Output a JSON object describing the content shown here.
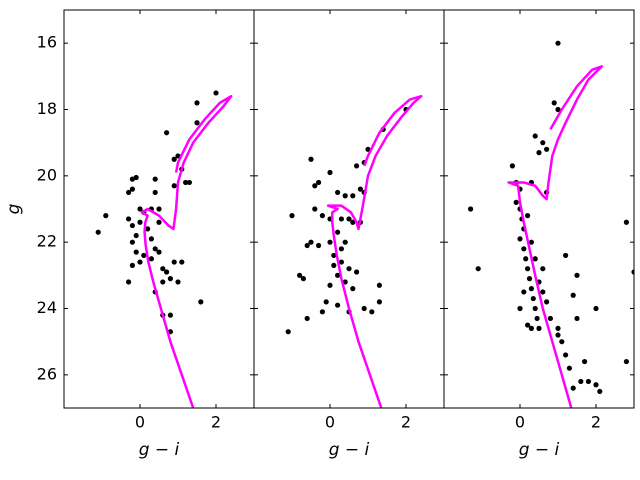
{
  "chart_data": [
    {
      "type": "scatter",
      "xlabel": "g − i",
      "ylabel": "g",
      "ytick_labels": true,
      "xlim": [
        -2,
        3
      ],
      "ylim": [
        27,
        15
      ],
      "xticks": [
        0,
        2
      ],
      "yticks": [
        16,
        18,
        20,
        22,
        24,
        26
      ],
      "series": [
        {
          "type": "scatter",
          "color": "#000000",
          "x": [
            -1.1,
            -0.9,
            -0.3,
            -0.2,
            -0.1,
            -0.2,
            0.4,
            0.4,
            -0.3,
            -0.2,
            -0.1,
            0.0,
            0.1,
            0.3,
            0.5,
            -0.2,
            -0.1,
            0.0,
            -0.2,
            0.1,
            0.3,
            0.5,
            0.6,
            0.7,
            0.9,
            1.1,
            0.8,
            0.6,
            0.4,
            1.0,
            -0.3,
            0.6,
            0.8,
            1.6,
            0.8,
            0.7,
            0.9,
            1.0,
            1.1,
            0.9,
            1.2,
            1.3,
            1.5,
            2.0,
            1.5,
            0.2,
            0.3,
            0.4,
            0.0,
            0.5
          ],
          "y": [
            21.7,
            21.2,
            20.5,
            20.1,
            20.05,
            20.4,
            20.1,
            20.5,
            21.3,
            21.5,
            21.8,
            21.0,
            21.1,
            21.0,
            21.0,
            22.0,
            22.3,
            22.6,
            22.7,
            22.4,
            22.5,
            22.3,
            22.8,
            22.9,
            22.6,
            22.6,
            23.1,
            23.2,
            23.5,
            23.2,
            23.2,
            24.2,
            24.2,
            23.8,
            24.7,
            18.7,
            19.5,
            19.4,
            19.8,
            20.3,
            20.2,
            20.2,
            17.8,
            17.5,
            18.4,
            21.6,
            21.9,
            22.2,
            21.4,
            21.4
          ]
        },
        {
          "type": "line",
          "color": "#ff00ff",
          "x": [
            1.4,
            1.1,
            0.8,
            0.55,
            0.35,
            0.22,
            0.15,
            0.12,
            0.14,
            0.2,
            0.05,
            0.2,
            0.5,
            0.75,
            0.88,
            0.95,
            1.0,
            1.15,
            1.4,
            1.8,
            2.2,
            2.4,
            2.1,
            1.7,
            1.3,
            1.0,
            0.95
          ],
          "y": [
            27,
            26,
            25,
            24,
            23.2,
            22.6,
            22.1,
            21.7,
            21.4,
            21.2,
            21.1,
            21.0,
            21.2,
            21.5,
            21.6,
            21.0,
            20.2,
            19.6,
            19.0,
            18.4,
            17.9,
            17.6,
            17.8,
            18.3,
            18.9,
            19.6,
            19.9
          ]
        }
      ]
    },
    {
      "type": "scatter",
      "xlabel": "g − i",
      "ytick_labels": false,
      "xlim": [
        -2,
        3
      ],
      "ylim": [
        27,
        15
      ],
      "xticks": [
        0,
        2
      ],
      "yticks": [
        16,
        18,
        20,
        22,
        24,
        26
      ],
      "series": [
        {
          "type": "scatter",
          "color": "#000000",
          "x": [
            -1.1,
            -0.7,
            -0.8,
            -0.6,
            -1.0,
            -0.5,
            -0.3,
            -0.4,
            0.0,
            0.2,
            0.4,
            0.6,
            -0.4,
            -0.2,
            0.0,
            0.3,
            0.5,
            -0.5,
            -0.3,
            0.0,
            0.2,
            0.4,
            0.1,
            0.3,
            0.5,
            0.2,
            0.4,
            0.6,
            0.0,
            -0.1,
            0.2,
            0.5,
            1.1,
            1.3,
            1.3,
            0.9,
            -0.2,
            0.7,
            0.9,
            1.0,
            1.4,
            0.8,
            0.9,
            2.0,
            0.6,
            0.8,
            -0.6,
            0.3,
            0.1,
            0.7
          ],
          "y": [
            24.7,
            23.1,
            23.0,
            24.3,
            21.2,
            19.5,
            20.2,
            20.3,
            19.9,
            20.5,
            20.6,
            20.6,
            21.0,
            21.2,
            21.3,
            21.3,
            21.3,
            22.0,
            22.1,
            22.0,
            21.7,
            22.0,
            22.4,
            22.6,
            22.8,
            23.0,
            23.2,
            23.4,
            23.3,
            23.8,
            23.9,
            24.1,
            24.1,
            23.3,
            23.8,
            24.0,
            24.1,
            19.7,
            19.6,
            19.2,
            18.6,
            20.4,
            20.5,
            18.0,
            21.4,
            21.4,
            22.1,
            22.2,
            22.7,
            22.9
          ]
        },
        {
          "type": "line",
          "color": "#ff00ff",
          "x": [
            1.35,
            1.05,
            0.75,
            0.5,
            0.3,
            0.18,
            0.1,
            0.06,
            0.06,
            0.2,
            -0.05,
            0.3,
            0.55,
            0.7,
            0.75,
            0.85,
            1.0,
            1.2,
            1.5,
            1.9,
            2.2,
            2.4,
            2.1,
            1.7,
            1.3,
            1.0,
            0.9
          ],
          "y": [
            27,
            26,
            25,
            24,
            23.1,
            22.4,
            21.8,
            21.4,
            21.1,
            21.0,
            20.9,
            20.9,
            21.1,
            21.4,
            21.6,
            21.0,
            20.0,
            19.4,
            18.8,
            18.2,
            17.8,
            17.6,
            17.7,
            18.1,
            18.7,
            19.4,
            19.7
          ]
        }
      ]
    },
    {
      "type": "scatter",
      "xlabel": "g − i",
      "ytick_labels": false,
      "xlim": [
        -2,
        3
      ],
      "ylim": [
        27,
        15
      ],
      "xticks": [
        0,
        2
      ],
      "yticks": [
        16,
        18,
        20,
        22,
        24,
        26
      ],
      "series": [
        {
          "type": "scatter",
          "color": "#000000",
          "x": [
            -1.3,
            -1.1,
            -0.2,
            0.0,
            -0.1,
            0.0,
            0.05,
            0.1,
            0.0,
            0.1,
            0.15,
            0.2,
            0.25,
            0.3,
            0.35,
            0.4,
            0.45,
            0.5,
            0.1,
            0.0,
            0.2,
            0.7,
            0.8,
            1.0,
            1.1,
            1.2,
            1.3,
            1.4,
            1.6,
            1.8,
            2.0,
            2.1,
            1.7,
            1.5,
            2.0,
            1.4,
            1.5,
            1.2,
            2.8,
            2.8,
            3.0,
            0.6,
            0.7,
            0.4,
            0.6,
            0.7,
            0.5,
            0.9,
            1.0,
            1.0,
            0.3,
            -0.1,
            0.2,
            0.3,
            0.4,
            0.5,
            0.6,
            0.3,
            1.0
          ],
          "y": [
            21.0,
            22.8,
            19.7,
            20.4,
            20.8,
            21.0,
            21.3,
            21.6,
            21.9,
            22.2,
            22.5,
            22.8,
            23.1,
            23.4,
            23.7,
            24.0,
            24.3,
            24.6,
            23.5,
            24.0,
            24.5,
            23.8,
            24.3,
            24.8,
            25.0,
            25.4,
            25.8,
            26.4,
            26.2,
            26.2,
            26.3,
            26.5,
            25.6,
            24.3,
            24.0,
            23.6,
            23.0,
            22.4,
            25.6,
            21.4,
            22.9,
            22.8,
            20.5,
            18.8,
            19.0,
            19.2,
            19.3,
            17.8,
            18.0,
            16.0,
            20.2,
            20.2,
            21.2,
            22.0,
            22.5,
            23.2,
            23.5,
            24.6,
            24.6
          ]
        },
        {
          "type": "line",
          "color": "#ff00ff",
          "x": [
            1.35,
            1.1,
            0.85,
            0.6,
            0.4,
            0.25,
            0.1,
            0.0,
            -0.05,
            -0.3,
            0.1,
            0.4,
            0.6,
            0.7,
            0.75,
            0.85,
            1.0,
            1.2,
            1.5,
            1.8,
            2.15,
            1.9,
            1.5,
            1.1,
            0.8
          ],
          "y": [
            27,
            26,
            25,
            24,
            23,
            22.2,
            21.4,
            20.8,
            20.3,
            20.2,
            20.2,
            20.3,
            20.6,
            20.7,
            20.2,
            19.4,
            18.9,
            18.4,
            17.7,
            17.1,
            16.7,
            16.8,
            17.3,
            18.0,
            18.6
          ]
        }
      ]
    }
  ]
}
